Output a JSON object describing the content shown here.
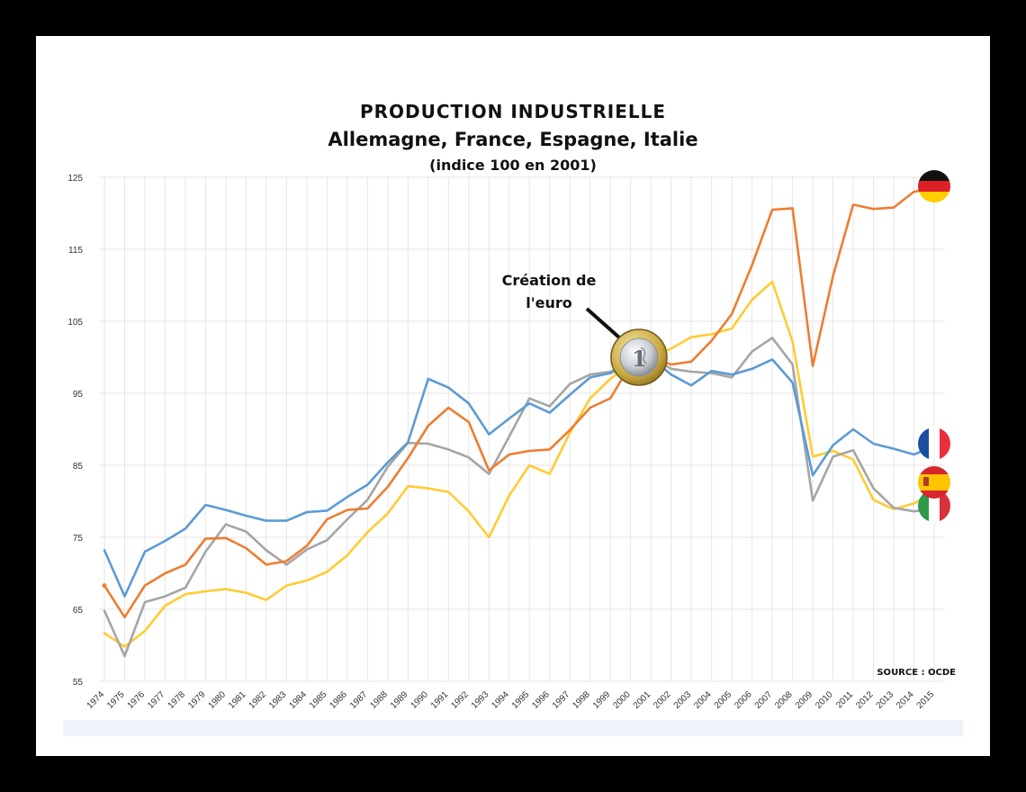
{
  "chart_data": {
    "type": "line",
    "title": "PRODUCTION INDUSTRIELLE",
    "subtitle": "Allemagne, France, Espagne, Italie",
    "subtitle2": "(indice 100 en 2001)",
    "annotation": [
      "Création de",
      "l'euro"
    ],
    "source": "SOURCE : OCDE",
    "ylim": [
      55,
      125
    ],
    "yticks": [
      "55",
      "65",
      "75",
      "85",
      "95",
      "105",
      "115",
      "125"
    ],
    "grid": true,
    "categories": [
      "1974",
      "1975",
      "1976",
      "1977",
      "1978",
      "1979",
      "1980",
      "1981",
      "1982",
      "1983",
      "1984",
      "1985",
      "1986",
      "1987",
      "1988",
      "1989",
      "1990",
      "1991",
      "1992",
      "1993",
      "1994",
      "1995",
      "1996",
      "1997",
      "1998",
      "1999",
      "2000",
      "2001",
      "2002",
      "2003",
      "2004",
      "2005",
      "2006",
      "2007",
      "2008",
      "2009",
      "2010",
      "2011",
      "2012",
      "2013",
      "2014",
      "2015"
    ],
    "series": [
      {
        "color": "#ffcc33",
        "flag": "spain-flag-icon",
        "values": [
          61.7,
          59.8,
          62,
          65.5,
          67.1,
          67.5,
          67.8,
          67.3,
          66.3,
          68.3,
          69,
          70.2,
          72.5,
          75.7,
          78.3,
          82.1,
          81.8,
          81.3,
          78.6,
          75,
          80.8,
          85,
          83.8,
          89.5,
          94.3,
          97,
          99.3,
          100,
          101.2,
          102.8,
          103.2,
          104,
          108,
          110.5,
          102.2,
          86.2,
          87,
          85.8,
          80.2,
          78.9,
          79.7,
          81.3
        ]
      },
      {
        "color": "#a5a5a5",
        "flag": "italy-flag-icon",
        "values": [
          64.8,
          58.5,
          66,
          66.8,
          68,
          73,
          76.8,
          75.8,
          73.2,
          71.2,
          73.3,
          74.6,
          77.5,
          80.2,
          84.8,
          88.1,
          88,
          87.2,
          86.1,
          83.8,
          89,
          94.3,
          93.2,
          96.3,
          97.6,
          98,
          99.5,
          100,
          98.4,
          98,
          97.8,
          97.2,
          100.8,
          102.7,
          99,
          80.1,
          86.2,
          87.1,
          81.8,
          79.1,
          78.6,
          79
        ]
      },
      {
        "color": "#ed7d31",
        "flag": "germany-flag-icon",
        "values": [
          68.3,
          63.9,
          68.3,
          70,
          71.2,
          74.8,
          74.9,
          73.5,
          71.2,
          71.7,
          73.8,
          77.5,
          78.8,
          79,
          82,
          86,
          90.5,
          93,
          91,
          84.3,
          86.5,
          87,
          87.2,
          89.9,
          93,
          94.3,
          99,
          100,
          99,
          99.4,
          102.3,
          106,
          112.8,
          120.5,
          120.7,
          98.8,
          111.3,
          121.2,
          120.6,
          120.8,
          123,
          123.5
        ]
      },
      {
        "color": "#5b9bd5",
        "flag": "france-flag-icon",
        "values": [
          73.2,
          66.8,
          73,
          74.5,
          76.2,
          79.5,
          78.8,
          78,
          77.3,
          77.3,
          78.5,
          78.7,
          80.6,
          82.3,
          85.4,
          88.2,
          97,
          95.8,
          93.6,
          89.3,
          91.5,
          93.6,
          92.3,
          94.8,
          97.2,
          97.8,
          99.1,
          100,
          97.6,
          96.1,
          98.1,
          97.6,
          98.4,
          99.7,
          96.5,
          83.6,
          87.8,
          90,
          88,
          87.3,
          86.5,
          87.7
        ]
      }
    ]
  }
}
